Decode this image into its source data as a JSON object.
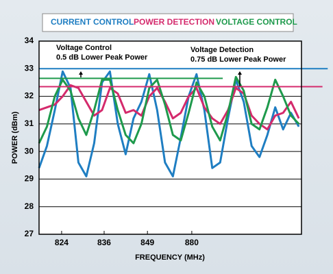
{
  "chart_data": {
    "type": "line",
    "xlabel": "FREQUENCY (MHz)",
    "ylabel": "POWER (dBm)",
    "x": [
      0,
      3,
      6,
      9,
      12,
      15,
      18,
      21,
      24,
      27,
      30,
      33,
      36,
      39,
      42,
      45,
      48,
      51,
      54,
      57,
      60,
      63,
      66,
      69,
      72,
      75,
      78,
      81,
      84,
      87,
      90,
      93,
      96,
      99
    ],
    "xlim": [
      0,
      100
    ],
    "xticks": [
      {
        "value": 8.6,
        "label": "824"
      },
      {
        "value": 24.8,
        "label": "836"
      },
      {
        "value": 41.3,
        "label": "849"
      },
      {
        "value": 58.2,
        "label": "880"
      }
    ],
    "ylim": [
      27,
      34
    ],
    "yticks": [
      27,
      28,
      29,
      30,
      31,
      32,
      33,
      34
    ],
    "grid": true,
    "series": [
      {
        "name": "CURRENT CONTROL",
        "color": "#1f7ec2",
        "values": [
          29.4,
          30.2,
          31.5,
          32.9,
          32.3,
          29.6,
          29.1,
          30.3,
          32.5,
          32.9,
          31.0,
          29.9,
          31.2,
          31.8,
          32.8,
          31.5,
          29.6,
          29.1,
          30.5,
          32.0,
          32.8,
          31.5,
          29.4,
          29.6,
          31.2,
          32.6,
          31.8,
          30.2,
          29.8,
          30.6,
          31.6,
          30.8,
          31.4,
          30.9
        ]
      },
      {
        "name": "POWER DETECTION",
        "color": "#d42a6c",
        "values": [
          31.5,
          31.6,
          31.7,
          32.0,
          32.4,
          32.3,
          31.8,
          31.3,
          31.5,
          32.3,
          32.1,
          31.4,
          31.5,
          31.3,
          32.0,
          32.3,
          31.8,
          31.2,
          31.4,
          32.0,
          32.3,
          31.6,
          31.2,
          31.0,
          31.5,
          32.3,
          32.1,
          31.3,
          31.0,
          30.8,
          31.3,
          31.4,
          31.8,
          31.2
        ]
      },
      {
        "name": "VOLTAGE CONTROL",
        "color": "#1e9a4c",
        "values": [
          30.3,
          30.9,
          32.0,
          32.6,
          32.2,
          31.2,
          30.6,
          31.5,
          32.6,
          32.6,
          31.5,
          30.6,
          30.3,
          31.0,
          32.3,
          32.6,
          31.7,
          30.6,
          30.4,
          31.4,
          32.5,
          32.0,
          30.9,
          30.4,
          31.4,
          32.7,
          32.2,
          31.0,
          30.8,
          31.6,
          32.6,
          32.0,
          31.3,
          31.0
        ]
      }
    ],
    "reference_lines": [
      {
        "value": 33,
        "color": "#1f7ec2",
        "x": [
          0,
          110
        ]
      },
      {
        "value": 32.35,
        "color": "#d42a6c",
        "x": [
          0,
          108
        ]
      },
      {
        "value": 32.65,
        "color": "#1e9a4c",
        "x": [
          0,
          70
        ]
      }
    ],
    "annotations": [
      "Voltage Control",
      "0.5 dB Lower Peak Power",
      "Voltage Detection",
      "0.75 dB Lower Peak Power"
    ]
  }
}
